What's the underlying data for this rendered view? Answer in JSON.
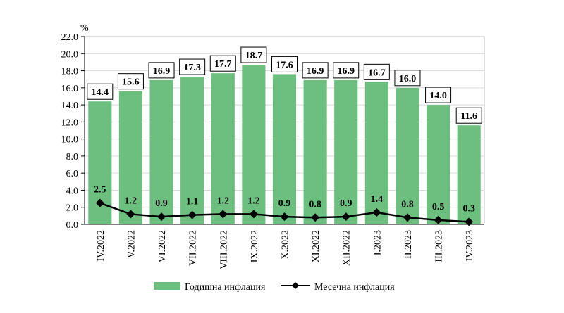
{
  "chart_data": {
    "type": "bar",
    "categories": [
      "IV.2022",
      "V.2022",
      "VI.2022",
      "VII.2022",
      "VIII.2022",
      "IX.2022",
      "X.2022",
      "XI.2022",
      "XII.2022",
      "I.2023",
      "II.2023",
      "III.2023",
      "IV.2023"
    ],
    "series": [
      {
        "name": "Годишна инфлация",
        "type": "bar",
        "color": "#6dbf80",
        "values": [
          14.4,
          15.6,
          16.9,
          17.3,
          17.7,
          18.7,
          17.6,
          16.9,
          16.9,
          16.7,
          16.0,
          14.0,
          11.6
        ],
        "labels": [
          "14.4",
          "15.6",
          "16.9",
          "17.3",
          "17.7",
          "18.7",
          "17.6",
          "16.9",
          "16.9",
          "16.7",
          "16.0",
          "14.0",
          "11.6"
        ]
      },
      {
        "name": "Месечна инфлация",
        "type": "line",
        "color": "#000000",
        "values": [
          2.5,
          1.2,
          0.9,
          1.1,
          1.2,
          1.2,
          0.9,
          0.8,
          0.9,
          1.4,
          0.8,
          0.5,
          0.3
        ],
        "labels": [
          "2.5",
          "1.2",
          "0.9",
          "1.1",
          "1.2",
          "1.2",
          "0.9",
          "0.8",
          "0.9",
          "1.4",
          "0.8",
          "0.5",
          "0.3"
        ]
      }
    ],
    "y_unit": "%",
    "ylim": [
      0,
      22
    ],
    "yticks": [
      "0.0",
      "2.0",
      "4.0",
      "6.0",
      "8.0",
      "10.0",
      "12.0",
      "14.0",
      "16.0",
      "18.0",
      "20.0",
      "22.0"
    ],
    "grid": true,
    "legend_position": "bottom"
  }
}
